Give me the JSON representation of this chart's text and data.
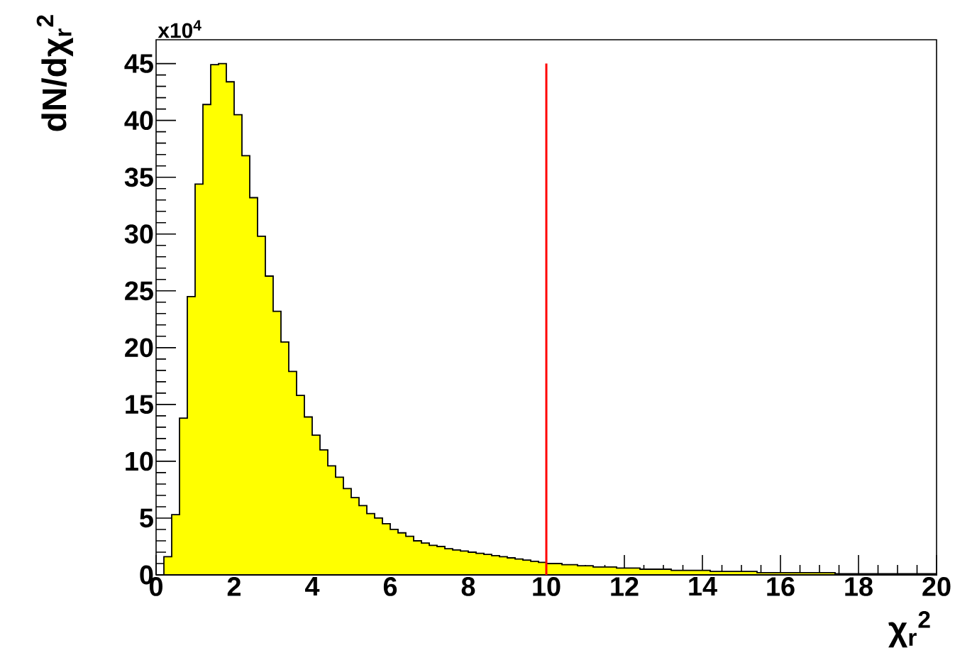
{
  "chart_data": {
    "type": "histogram",
    "xlabel": "χ$_{r}$$^{2}$",
    "ylabel": "dN/dχ$_{r}$$^{2}$",
    "annotations": [
      "x10$^{4}$"
    ],
    "bins": [
      0,
      0.2,
      0.4,
      0.6,
      0.8,
      1,
      1.2,
      1.4,
      1.6,
      1.8,
      2,
      2.2,
      2.4,
      2.6,
      2.8,
      3,
      3.2,
      3.4,
      3.6,
      3.8,
      4,
      4.2,
      4.4,
      4.6,
      4.8,
      5,
      5.2,
      5.4,
      5.6,
      5.8,
      6,
      6.2,
      6.4,
      6.6,
      6.8,
      7,
      7.2,
      7.4,
      7.6,
      7.8,
      8,
      8.2,
      8.4,
      8.6,
      8.8,
      9,
      9.2,
      9.4,
      9.6,
      9.8,
      10,
      10.2,
      10.4,
      10.6,
      10.8,
      11,
      11.2,
      11.4,
      11.6,
      11.8,
      12,
      12.2,
      12.4,
      12.6,
      12.8,
      13,
      13.2,
      13.4,
      13.6,
      13.8,
      14,
      14.2,
      14.4,
      14.6,
      14.8,
      15,
      15.2,
      15.4,
      15.6,
      15.8,
      16,
      16.2,
      16.4,
      16.6,
      16.8,
      17,
      17.2,
      17.4,
      17.6,
      17.8,
      18,
      18.2,
      18.4,
      18.6,
      18.8,
      19,
      19.2,
      19.4,
      19.6,
      19.8,
      20
    ],
    "values": [
      0,
      1.6,
      5.3,
      13.8,
      24.5,
      34.4,
      41.4,
      44.9,
      45.0,
      43.4,
      40.5,
      36.9,
      33.2,
      29.8,
      26.3,
      23.2,
      20.5,
      17.9,
      15.8,
      13.9,
      12.3,
      11.0,
      9.6,
      8.6,
      7.6,
      6.8,
      6.1,
      5.4,
      5.0,
      4.5,
      4.0,
      3.7,
      3.4,
      3.0,
      2.8,
      2.6,
      2.5,
      2.3,
      2.2,
      2.1,
      2.0,
      1.9,
      1.8,
      1.7,
      1.6,
      1.5,
      1.4,
      1.3,
      1.2,
      1.1,
      1.0,
      1.0,
      0.9,
      0.9,
      0.8,
      0.8,
      0.7,
      0.7,
      0.7,
      0.6,
      0.6,
      0.6,
      0.5,
      0.5,
      0.5,
      0.5,
      0.4,
      0.4,
      0.4,
      0.4,
      0.4,
      0.3,
      0.3,
      0.3,
      0.3,
      0.3,
      0.3,
      0.2,
      0.2,
      0.2,
      0.2,
      0.2,
      0.2,
      0.2,
      0.2,
      0.2,
      0.2,
      0.1,
      0.1,
      0.1,
      0.1,
      0.1,
      0.1,
      0.1,
      0.1,
      0.1,
      0.1,
      0.1,
      0.1,
      0.1
    ],
    "color": "#ffff00",
    "xlim": [
      0,
      20
    ],
    "xticks": [
      0,
      2,
      4,
      6,
      8,
      10,
      12,
      14,
      16,
      18,
      20
    ],
    "ylim": [
      0,
      47.1
    ],
    "yticks": [
      0,
      5,
      10,
      15,
      20,
      25,
      30,
      35,
      40,
      45
    ],
    "ref_lines": [
      {
        "axis": "x",
        "value": 10,
        "color": "#ff0000"
      }
    ],
    "grid": false
  }
}
